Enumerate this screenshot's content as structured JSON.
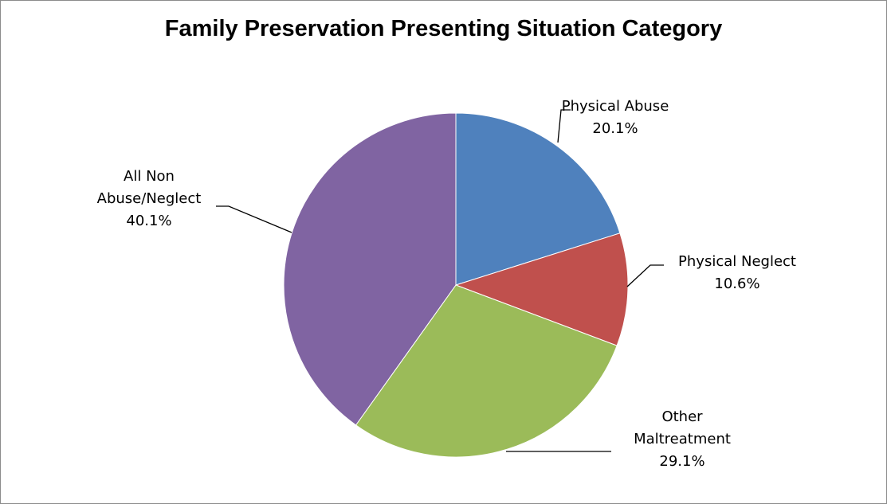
{
  "chart_data": {
    "type": "pie",
    "title": "Family Preservation Presenting Situation Category",
    "slices": [
      {
        "label": [
          "Physical Abuse"
        ],
        "value": 20.1,
        "display": "20.1%",
        "color": "#4f81bd"
      },
      {
        "label": [
          "Physical Neglect"
        ],
        "value": 10.6,
        "display": "10.6%",
        "color": "#c0504d"
      },
      {
        "label": [
          "Other",
          "Maltreatment"
        ],
        "value": 29.1,
        "display": "29.1%",
        "color": "#9bbb59"
      },
      {
        "label": [
          "All Non",
          "Abuse/Neglect"
        ],
        "value": 40.1,
        "display": "40.1%",
        "color": "#8064a2"
      }
    ],
    "start_angle": "12 o'clock",
    "direction": "clockwise",
    "legend": "none",
    "data_labels": "outside with leader lines"
  }
}
